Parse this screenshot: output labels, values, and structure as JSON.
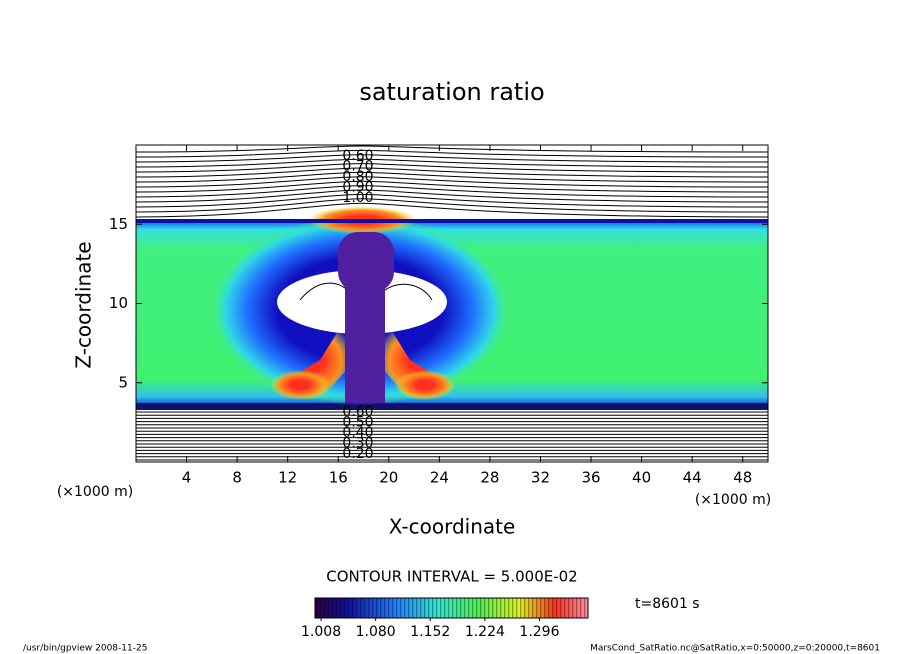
{
  "chart_data": {
    "type": "contour",
    "title": "saturation ratio",
    "x_label": "X-coordinate",
    "y_label": "Z-coordinate",
    "x_unit": "(×1000 m)",
    "y_unit": "(×1000 m)",
    "xlim": [
      0,
      50
    ],
    "xticks": [
      4,
      8,
      12,
      16,
      20,
      24,
      28,
      32,
      36,
      40,
      44,
      48
    ],
    "ylim": [
      0,
      20
    ],
    "yticks": [
      5,
      10,
      15
    ],
    "contour_labels_top": [
      {
        "value": 0.6,
        "label": "0.60"
      },
      {
        "value": 0.7,
        "label": "0.70"
      },
      {
        "value": 0.8,
        "label": "0.80"
      },
      {
        "value": 0.9,
        "label": "0.90"
      },
      {
        "value": 1.0,
        "label": "1.00"
      }
    ],
    "contour_labels_bottom": [
      {
        "value": 0.6,
        "label": "0.60"
      },
      {
        "value": 0.5,
        "label": "0.50"
      },
      {
        "value": 0.4,
        "label": "0.40"
      },
      {
        "value": 0.3,
        "label": "0.30"
      },
      {
        "value": 0.2,
        "label": "0.20"
      }
    ],
    "contour_interval": "CONTOUR INTERVAL = 5.000E-02",
    "clim": [
      1.0,
      1.36
    ],
    "cticks": [
      1.008,
      {
        "value": 1.08,
        "label": "1.080"
      },
      1.152,
      1.224,
      1.296
    ],
    "time_label": "t=8601 s",
    "footer_left": "/usr/bin/gpview   2008-11-25",
    "footer_right": "MarsCond_SatRatio.nc@SatRatio,x=0:50000,z=0:20000,t=8601"
  }
}
